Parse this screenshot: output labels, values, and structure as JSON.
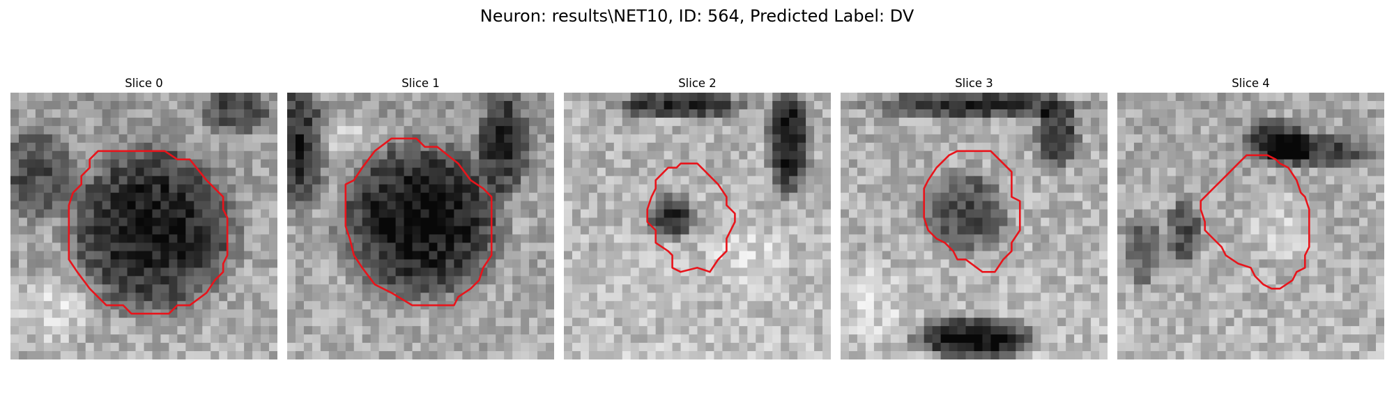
{
  "figure": {
    "title": "Neuron: results\\NET10, ID: 564, Predicted Label: DV",
    "outline_color": "#e8141b"
  },
  "slices": [
    {
      "label": "Slice 0",
      "image": "grayscale-patch",
      "outline": "red-contour"
    },
    {
      "label": "Slice 1",
      "image": "grayscale-patch",
      "outline": "red-contour"
    },
    {
      "label": "Slice 2",
      "image": "grayscale-patch",
      "outline": "red-contour"
    },
    {
      "label": "Slice 3",
      "image": "grayscale-patch",
      "outline": "red-contour"
    },
    {
      "label": "Slice 4",
      "image": "grayscale-patch",
      "outline": "red-contour"
    }
  ]
}
